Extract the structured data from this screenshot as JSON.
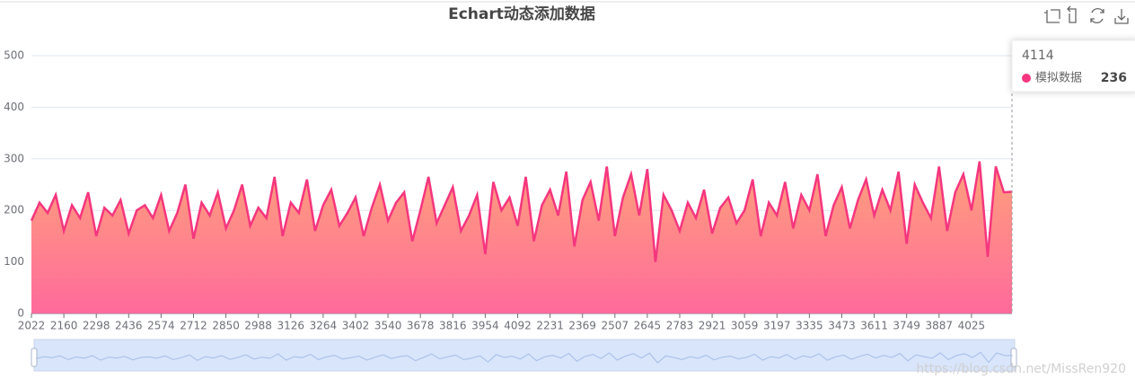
{
  "chart_data": {
    "type": "area",
    "title": "Echart动态添加数据",
    "categories": [
      "2022",
      null,
      null,
      null,
      "2160",
      null,
      null,
      null,
      "2298",
      null,
      null,
      null,
      "2436",
      null,
      null,
      null,
      "2574",
      null,
      null,
      null,
      "2712",
      null,
      null,
      null,
      "2850",
      null,
      null,
      null,
      "2988",
      null,
      null,
      null,
      "3126",
      null,
      null,
      null,
      "3264",
      null,
      null,
      null,
      "3402",
      null,
      null,
      null,
      "3540",
      null,
      null,
      null,
      "3678",
      null,
      null,
      null,
      "3816",
      null,
      null,
      null,
      "3954",
      null,
      null,
      null,
      "4092",
      null,
      null,
      null,
      "2231",
      null,
      null,
      null,
      "2369",
      null,
      null,
      null,
      "2507",
      null,
      null,
      null,
      "2645",
      null,
      null,
      null,
      "2783",
      null,
      null,
      null,
      "2921",
      null,
      null,
      null,
      "3059",
      null,
      null,
      null,
      "3197",
      null,
      null,
      null,
      "3335",
      null,
      null,
      null,
      "3473",
      null,
      null,
      null,
      "3611",
      null,
      null,
      null,
      "3749",
      null,
      null,
      null,
      "3887",
      null,
      null,
      null,
      "4025",
      null,
      null,
      null,
      null,
      null
    ],
    "series": [
      {
        "name": "模拟数据",
        "color": "#f5367e",
        "values": [
          180,
          215,
          195,
          230,
          160,
          210,
          185,
          235,
          150,
          205,
          190,
          220,
          155,
          200,
          210,
          185,
          230,
          160,
          195,
          250,
          145,
          215,
          190,
          235,
          165,
          200,
          250,
          170,
          205,
          185,
          265,
          150,
          215,
          195,
          260,
          160,
          210,
          240,
          170,
          195,
          225,
          150,
          205,
          250,
          180,
          215,
          235,
          140,
          200,
          265,
          175,
          210,
          245,
          160,
          190,
          230,
          115,
          255,
          200,
          225,
          170,
          265,
          140,
          210,
          240,
          190,
          275,
          130,
          220,
          255,
          180,
          285,
          150,
          225,
          270,
          190,
          280,
          100,
          230,
          200,
          160,
          215,
          185,
          240,
          155,
          205,
          225,
          175,
          200,
          260,
          150,
          215,
          190,
          255,
          165,
          230,
          200,
          270,
          150,
          210,
          245,
          165,
          220,
          260,
          190,
          240,
          200,
          275,
          135,
          250,
          215,
          185,
          285,
          160,
          235,
          270,
          200,
          295,
          110,
          285,
          235,
          236
        ]
      }
    ],
    "ylim": [
      0,
      500
    ],
    "yticks": [
      0,
      100,
      200,
      300,
      400,
      500
    ],
    "grid": true
  },
  "tooltip": {
    "title": "4114"
  },
  "watermark": "https://blog.csdn.net/MissRen920"
}
